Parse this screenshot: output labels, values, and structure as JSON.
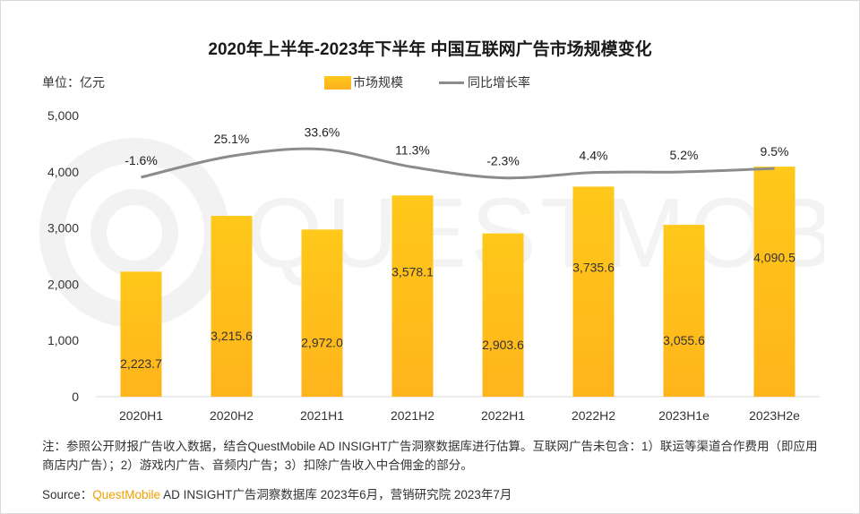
{
  "title": "2020年上半年-2023年下半年 中国互联网广告市场规模变化",
  "unit_label": "单位：亿元",
  "legend": {
    "bar": "市场规模",
    "line": "同比增长率"
  },
  "watermark": "QUESTMOBILE",
  "colors": {
    "bar_top": "#ffc81a",
    "bar_bottom": "#ffb41c",
    "line": "#8c8c8c",
    "grid": "#d9d9d9",
    "brand": "#f0a000"
  },
  "chart_data": {
    "type": "bar",
    "title": "2020年上半年-2023年下半年 中国互联网广告市场规模变化",
    "categories": [
      "2020H1",
      "2020H2",
      "2021H1",
      "2021H2",
      "2022H1",
      "2022H2",
      "2023H1e",
      "2023H2e"
    ],
    "series": [
      {
        "name": "市场规模",
        "type": "bar",
        "values": [
          2223.7,
          3215.6,
          2972.0,
          3578.1,
          2903.6,
          3735.6,
          3055.6,
          4090.5
        ],
        "labels": [
          "2,223.7",
          "3,215.6",
          "2,972.0",
          "3,578.1",
          "2,903.6",
          "3,735.6",
          "3,055.6",
          "4,090.5"
        ]
      },
      {
        "name": "同比增长率",
        "type": "line",
        "values": [
          -1.6,
          25.1,
          33.6,
          11.3,
          -2.3,
          4.4,
          5.2,
          9.5
        ],
        "labels": [
          "-1.6%",
          "25.1%",
          "33.6%",
          "11.3%",
          "-2.3%",
          "4.4%",
          "5.2%",
          "9.5%"
        ]
      }
    ],
    "ylabel": "亿元",
    "ylim": [
      0,
      5000
    ],
    "yticks": [
      0,
      1000,
      2000,
      3000,
      4000,
      5000
    ],
    "ytick_labels": [
      "0",
      "1,000",
      "2,000",
      "3,000",
      "4,000",
      "5,000"
    ],
    "grid": false
  },
  "note": "注：参照公开财报广告收入数据，结合QuestMobile AD INSIGHT广告洞察数据库进行估算。互联网广告未包含：1）联运等渠道合作费用（即应用商店内广告）；2）游戏内广告、音频内广告；3）扣除广告收入中合佣金的部分。",
  "source": {
    "prefix": "Source：",
    "brand": "QuestMobile",
    "rest": " AD INSIGHT广告洞察数据库 2023年6月，营销研究院 2023年7月"
  }
}
